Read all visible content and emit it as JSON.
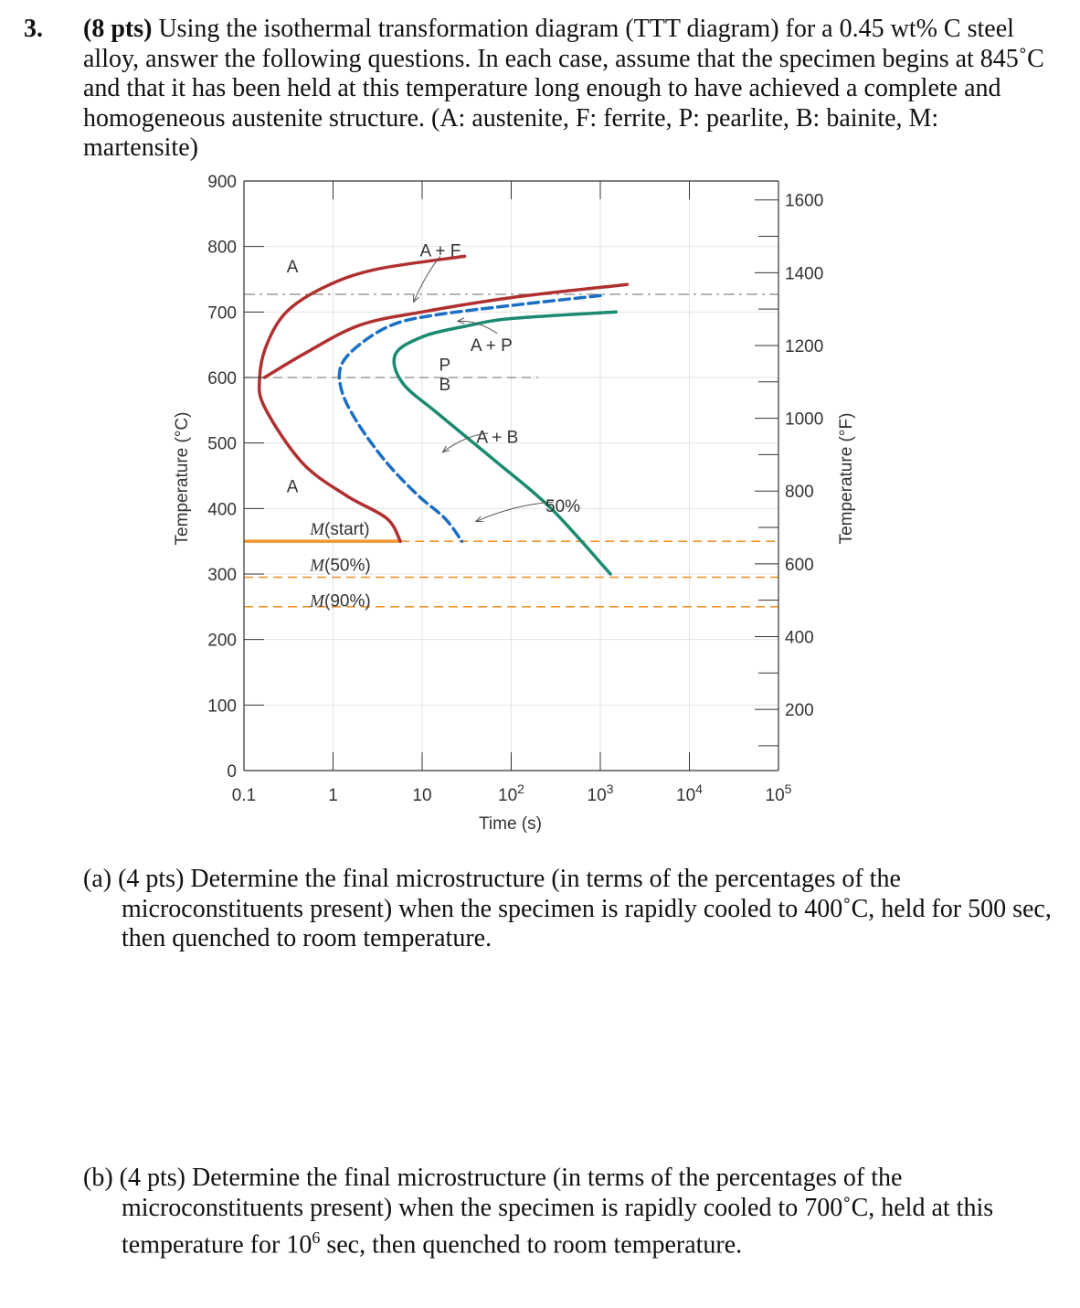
{
  "question": {
    "number": "3.",
    "points": "(8 pts)",
    "text": " Using the isothermal transformation diagram (TTT diagram) for a 0.45 wt% C steel alloy, answer the following questions. In each case, assume that the specimen begins at 845˚C and that it has been held at this temperature long enough to have achieved a complete and homogeneous austenite structure.  (A: austenite, F: ferrite, P: pearlite, B: bainite, M: martensite)"
  },
  "chart_data": {
    "type": "line",
    "x_scale": "log",
    "xlim": [
      0.1,
      100000
    ],
    "ylim": [
      0,
      900
    ],
    "xlabel": "Time (s)",
    "ylabel": "Temperature (°C)",
    "ylabel_right": "Temperature (°F)",
    "x_ticks": [
      {
        "value": 0.1,
        "label": "0.1"
      },
      {
        "value": 1,
        "label": "1"
      },
      {
        "value": 10,
        "label": "10"
      },
      {
        "value": 100,
        "base": "10",
        "exp": "2"
      },
      {
        "value": 1000,
        "base": "10",
        "exp": "3"
      },
      {
        "value": 10000,
        "base": "10",
        "exp": "4"
      },
      {
        "value": 100000,
        "base": "10",
        "exp": "5"
      }
    ],
    "y_ticks": [
      0,
      100,
      200,
      300,
      400,
      500,
      600,
      700,
      800,
      900
    ],
    "y_ticks_right": [
      {
        "c": 871.1,
        "label": "1600"
      },
      {
        "c": 760.0,
        "label": "1400"
      },
      {
        "c": 648.9,
        "label": "1200"
      },
      {
        "c": 537.8,
        "label": "1000"
      },
      {
        "c": 426.7,
        "label": "800"
      },
      {
        "c": 315.6,
        "label": "600"
      },
      {
        "c": 204.4,
        "label": "400"
      },
      {
        "c": 93.3,
        "label": "200"
      }
    ],
    "series": [
      {
        "key": "ferrite_start",
        "color": "#b03030",
        "dashed": false,
        "points": [
          [
            30,
            785
          ],
          [
            3,
            765
          ],
          [
            0.8,
            738
          ],
          [
            0.3,
            700
          ],
          [
            0.18,
            650
          ],
          [
            0.15,
            600
          ],
          [
            0.17,
            555
          ],
          [
            0.45,
            470
          ],
          [
            1.4,
            420
          ],
          [
            4,
            385
          ],
          [
            5.7,
            350
          ]
        ]
      },
      {
        "key": "pearlite_start_upper",
        "color": "#b03030",
        "dashed": false,
        "points": [
          [
            2000,
            742
          ],
          [
            100,
            722
          ],
          [
            10,
            700
          ],
          [
            2,
            680
          ],
          [
            0.5,
            638
          ],
          [
            0.17,
            600
          ]
        ]
      },
      {
        "key": "blue_50pct",
        "color": "#1a6fc4",
        "dashed": true,
        "points": [
          [
            1000,
            725
          ],
          [
            100,
            710
          ],
          [
            15,
            696
          ],
          [
            5,
            682
          ],
          [
            2.2,
            655
          ],
          [
            1.25,
            620
          ],
          [
            1.25,
            580
          ],
          [
            1.9,
            530
          ],
          [
            4,
            470
          ],
          [
            9,
            420
          ],
          [
            18,
            385
          ],
          [
            28,
            350
          ]
        ]
      },
      {
        "key": "finish_green",
        "color": "#1a8a70",
        "dashed": false,
        "points": [
          [
            1500,
            700
          ],
          [
            100,
            690
          ],
          [
            30,
            678
          ],
          [
            10,
            662
          ],
          [
            5,
            635
          ],
          [
            6,
            592
          ],
          [
            15,
            545
          ],
          [
            70,
            470
          ],
          [
            280,
            400
          ],
          [
            1300,
            300
          ]
        ]
      }
    ],
    "horizontal_lines": [
      {
        "y": 350,
        "from": 0.1,
        "to_solid": 5.7,
        "color": "#f0962e"
      },
      {
        "y": 295,
        "from": 0.1,
        "color": "#f0962e"
      },
      {
        "y": 250,
        "from": 0.1,
        "color": "#f0962e"
      }
    ],
    "reference_lines": [
      {
        "y": 727,
        "style": "dash-dot"
      },
      {
        "y": 600,
        "style": "dashed",
        "to": 200
      }
    ],
    "annotations": [
      {
        "text": "A",
        "x": 0.35,
        "y": 770
      },
      {
        "text": "A + F",
        "x": 16,
        "y": 795
      },
      {
        "text": "A + P",
        "x": 60,
        "y": 650
      },
      {
        "text": "P",
        "x": 18,
        "y": 620
      },
      {
        "text": "B",
        "x": 18,
        "y": 590
      },
      {
        "text": "A + B",
        "x": 70,
        "y": 510
      },
      {
        "text": "A",
        "x": 0.35,
        "y": 435
      },
      {
        "text": "50%",
        "x": 380,
        "y": 405
      },
      {
        "text": "M(start)",
        "x": 0.55,
        "y": 370,
        "italic_prefix": "M",
        "suffix": "(start)"
      },
      {
        "text": "M(50%)",
        "x": 0.55,
        "y": 315,
        "italic_prefix": "M",
        "suffix": "(50%)"
      },
      {
        "text": "M(90%)",
        "x": 0.55,
        "y": 260,
        "italic_prefix": "M",
        "suffix": "(90%)"
      }
    ]
  },
  "parts": {
    "a": "(a) (4 pts) Determine the final microstructure (in terms of the percentages of the microconstituents present) when the specimen is rapidly cooled to 400˚C, held for 500 sec, then quenched to room temperature.",
    "b_before": "(b) (4 pts) Determine the final microstructure (in terms of the percentages of the microconstituents present) when the specimen is rapidly cooled to 700˚C, held at this temperature for 10",
    "b_sup": "6",
    "b_after": " sec, then quenched to room temperature."
  }
}
